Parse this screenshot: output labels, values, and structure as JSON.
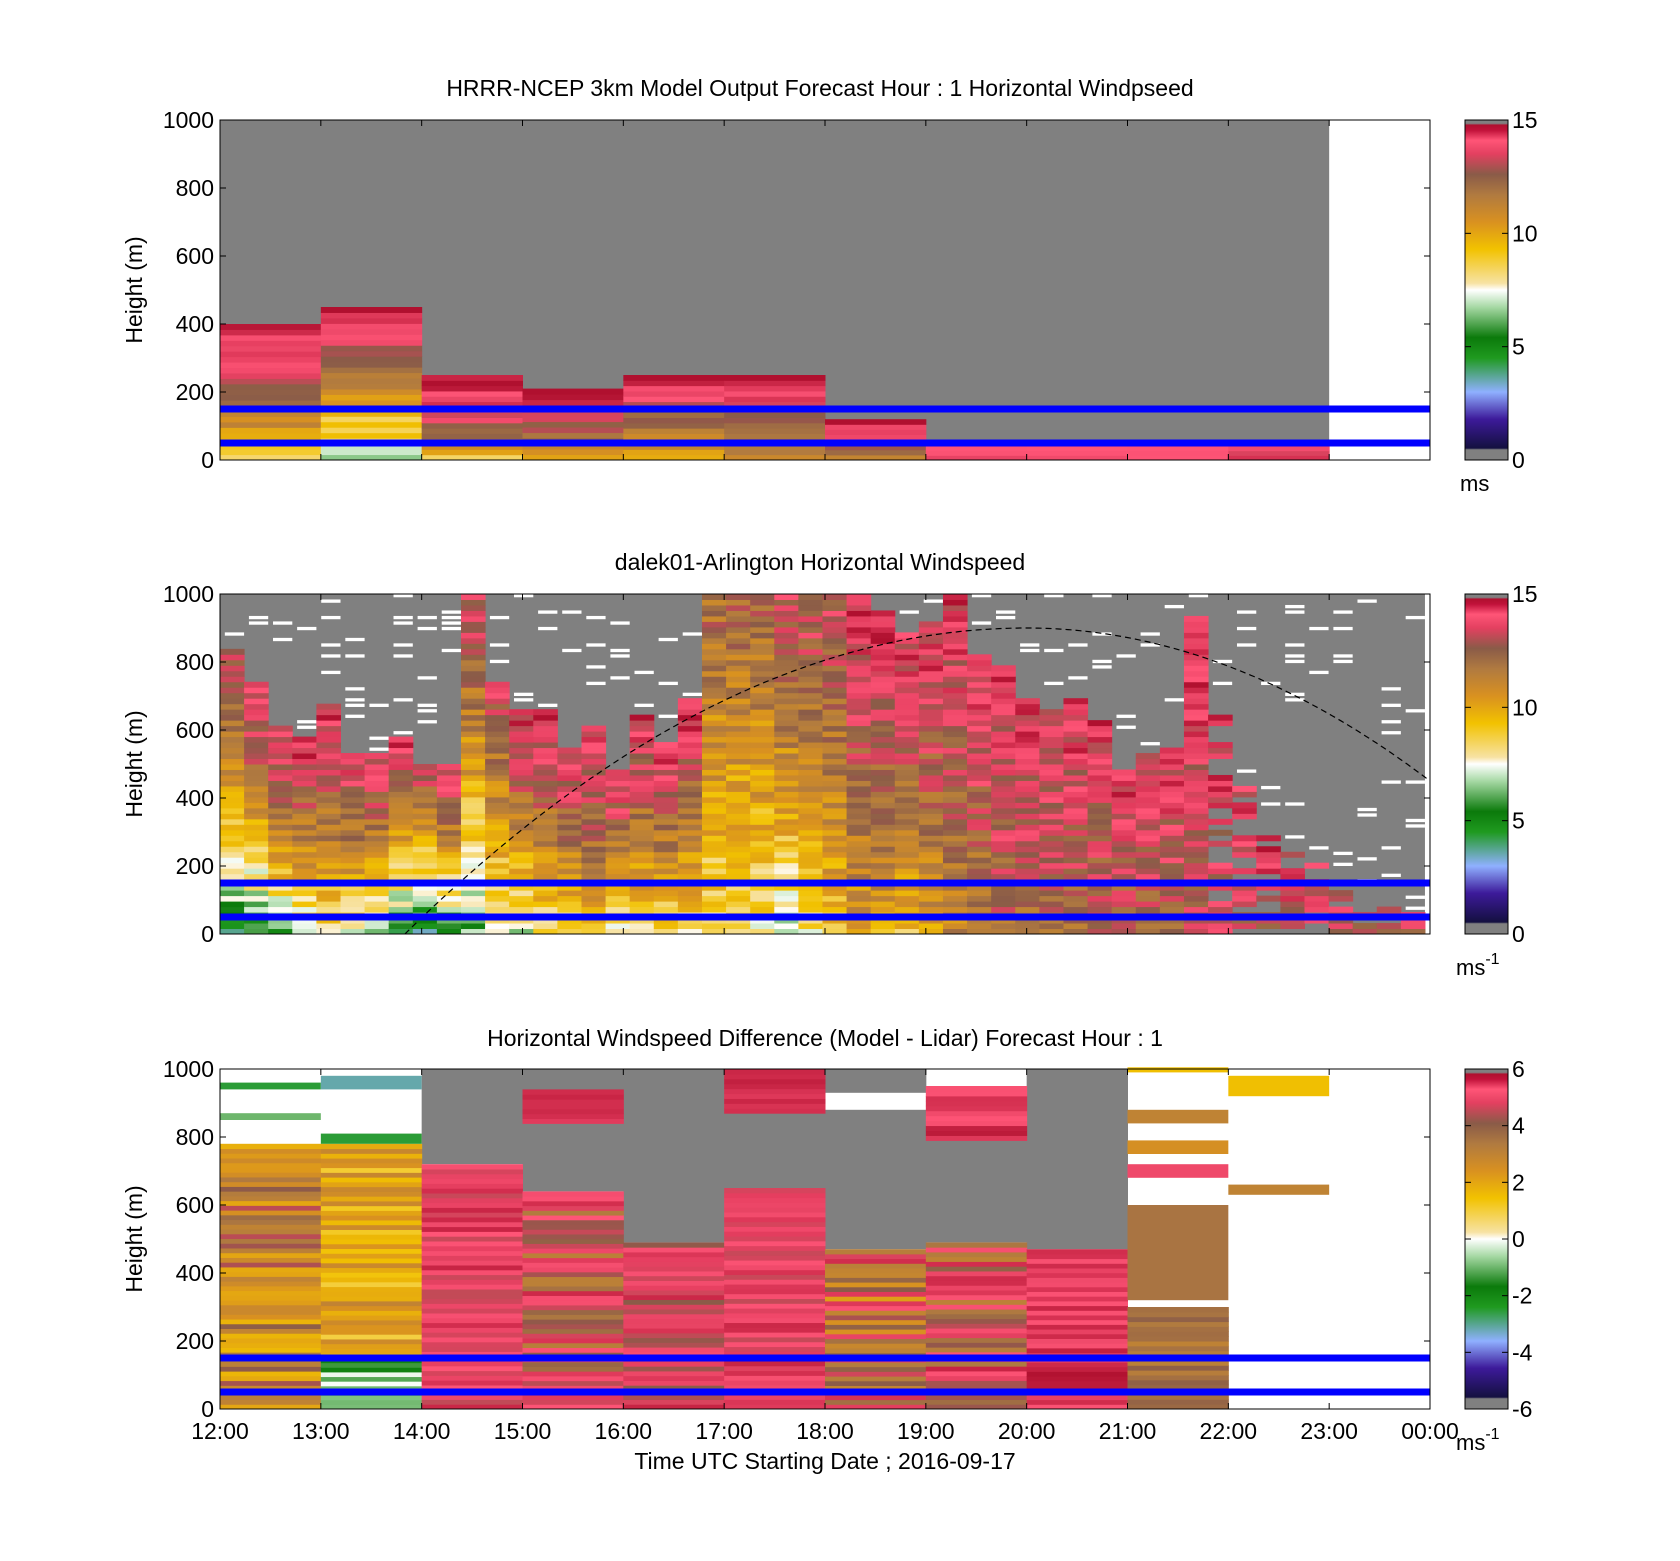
{
  "figure": {
    "xlabel": "Time UTC  Starting Date ; 2016-09-17",
    "x_ticks": [
      "12:00",
      "13:00",
      "14:00",
      "15:00",
      "16:00",
      "17:00",
      "18:00",
      "19:00",
      "20:00",
      "21:00",
      "22:00",
      "23:00",
      "00:00"
    ]
  },
  "colors": {
    "nodata": "#808080",
    "reference_lines": "#0000ff"
  },
  "chart_data": [
    {
      "type": "heatmap",
      "title": "HRRR-NCEP 3km Model Output   Forecast Hour : 1 Horizontal Windpseed",
      "ylabel": "Height (m)",
      "y_ticks": [
        "0",
        "200",
        "400",
        "600",
        "800",
        "1000"
      ],
      "xlim": [
        "12:00",
        "00:00"
      ],
      "ylim": [
        0,
        1000
      ],
      "colorbar": {
        "range": [
          0,
          15
        ],
        "ticks": [
          "0",
          "5",
          "10",
          "15"
        ],
        "units": "ms"
      },
      "reference_lines_m": [
        50,
        150
      ],
      "data_extent_end": "23:00",
      "hourly_top_m": [
        400,
        450,
        250,
        210,
        250,
        250,
        120,
        55,
        55,
        55,
        55
      ],
      "hourly_profile_ms": [
        [
          9,
          10,
          11,
          12,
          13,
          14,
          14,
          15
        ],
        [
          6,
          9,
          9,
          11,
          12,
          13,
          14,
          15
        ],
        [
          9,
          12,
          13,
          14,
          14,
          15
        ],
        [
          10,
          12,
          13,
          14,
          15
        ],
        [
          10,
          11,
          12,
          13,
          14,
          15
        ],
        [
          11,
          12,
          13,
          14,
          15
        ],
        [
          11,
          13,
          14,
          15
        ],
        [
          14
        ],
        [
          14
        ],
        [
          14
        ],
        [
          14
        ]
      ]
    },
    {
      "type": "heatmap",
      "title": "dalek01-Arlington  Horizontal Windspeed",
      "ylabel": "Height (m)",
      "y_ticks": [
        "0",
        "200",
        "400",
        "600",
        "800",
        "1000"
      ],
      "xlim": [
        "12:00",
        "00:00"
      ],
      "ylim": [
        0,
        1000
      ],
      "colorbar": {
        "range": [
          0,
          15
        ],
        "ticks": [
          "0",
          "5",
          "10",
          "15"
        ],
        "units": "ms",
        "units_exponent": "-1"
      },
      "reference_lines_m": [
        50,
        150
      ],
      "overlay_curve": {
        "style": "dashed",
        "start": [
          "13:50",
          0
        ],
        "peak": [
          "20:00",
          900
        ],
        "end": [
          "00:00",
          450
        ]
      },
      "column_top_m": [
        830,
        730,
        600,
        580,
        670,
        530,
        520,
        580,
        500,
        500,
        1000,
        740,
        660,
        650,
        540,
        600,
        470,
        640,
        560,
        680,
        1000,
        1000,
        1000,
        1000,
        1000,
        1000,
        990,
        940,
        880,
        910,
        1000,
        810,
        790,
        690,
        650,
        680,
        620,
        480,
        530,
        540,
        920,
        640,
        430,
        280,
        230,
        200,
        120,
        80,
        80,
        60
      ],
      "column_low_ms": [
        5,
        5,
        6,
        7,
        8,
        7,
        6,
        5,
        4,
        5,
        6,
        7,
        7,
        8,
        8,
        9,
        7,
        8,
        8,
        8,
        8,
        8,
        8,
        7,
        8,
        9,
        10,
        10,
        9,
        10,
        11,
        11,
        12,
        12,
        12,
        12,
        12,
        12,
        12,
        12,
        13,
        13,
        13,
        13,
        13,
        13,
        13,
        13,
        13,
        13
      ],
      "column_high_ms": [
        13,
        14,
        14,
        14,
        14,
        14,
        14,
        14,
        13,
        14,
        13,
        13,
        14,
        14,
        14,
        14,
        14,
        14,
        14,
        14,
        12,
        12,
        12,
        13,
        13,
        13,
        14,
        14,
        14,
        14,
        14,
        14,
        14,
        14,
        14,
        14,
        14,
        14,
        14,
        14,
        14,
        14,
        14,
        14,
        14,
        14,
        14,
        14,
        14,
        14
      ]
    },
    {
      "type": "heatmap",
      "title": "Horizontal Windspeed Difference (Model - Lidar) Forecast Hour : 1",
      "ylabel": "Height (m)",
      "y_ticks": [
        "0",
        "200",
        "400",
        "600",
        "800",
        "1000"
      ],
      "xlim": [
        "12:00",
        "00:00"
      ],
      "ylim": [
        0,
        1000
      ],
      "colorbar": {
        "range": [
          -6,
          6
        ],
        "ticks": [
          "-6",
          "-4",
          "-2",
          "0",
          "2",
          "4",
          "6"
        ],
        "units": "ms",
        "units_exponent": "-1"
      },
      "reference_lines_m": [
        50,
        150
      ],
      "hourly_blocks": [
        {
          "hour": "12:00",
          "from_m": 0,
          "to_m": 780,
          "low_dms": 1.5,
          "high_dms": 4.5
        },
        {
          "hour": "13:00",
          "from_m": 150,
          "to_m": 780,
          "low_dms": 1.0,
          "high_dms": 3.0
        },
        {
          "hour": "13:00",
          "from_m": 0,
          "to_m": 150,
          "low_dms": -2.0,
          "high_dms": 0.0
        },
        {
          "hour": "14:00",
          "from_m": 0,
          "to_m": 720,
          "low_dms": 4.5,
          "high_dms": 5.8
        },
        {
          "hour": "15:00",
          "from_m": 0,
          "to_m": 640,
          "low_dms": 3.0,
          "high_dms": 5.8
        },
        {
          "hour": "15:00",
          "from_m": 840,
          "to_m": 940,
          "low_dms": 5.5,
          "high_dms": 5.8
        },
        {
          "hour": "16:00",
          "from_m": 0,
          "to_m": 490,
          "low_dms": 4.0,
          "high_dms": 5.8
        },
        {
          "hour": "17:00",
          "from_m": 0,
          "to_m": 650,
          "low_dms": 4.5,
          "high_dms": 5.8
        },
        {
          "hour": "17:00",
          "from_m": 870,
          "to_m": 1000,
          "low_dms": 5.5,
          "high_dms": 5.9
        },
        {
          "hour": "18:00",
          "from_m": 0,
          "to_m": 470,
          "low_dms": 2.0,
          "high_dms": 5.8
        },
        {
          "hour": "19:00",
          "from_m": 0,
          "to_m": 490,
          "low_dms": 3.0,
          "high_dms": 5.8
        },
        {
          "hour": "19:00",
          "from_m": 790,
          "to_m": 950,
          "low_dms": 5.0,
          "high_dms": 5.9
        },
        {
          "hour": "20:00",
          "from_m": 0,
          "to_m": 470,
          "low_dms": 5.0,
          "high_dms": 6.0
        },
        {
          "hour": "21:00",
          "from_m": 0,
          "to_m": 300,
          "low_dms": 3.0,
          "high_dms": 4.0
        }
      ],
      "scattered_bands": [
        {
          "hour": "12:00",
          "from_m": 940,
          "to_m": 960,
          "value_dms": -2.5
        },
        {
          "hour": "12:00",
          "from_m": 850,
          "to_m": 870,
          "value_dms": -1.0
        },
        {
          "hour": "13:00",
          "from_m": 940,
          "to_m": 980,
          "value_dms": -3.0
        },
        {
          "hour": "13:00",
          "from_m": 780,
          "to_m": 810,
          "value_dms": -2.5
        },
        {
          "hour": "21:00",
          "from_m": 990,
          "to_m": 1005,
          "value_dms": 1.5
        },
        {
          "hour": "21:00",
          "from_m": 840,
          "to_m": 880,
          "value_dms": 3.0
        },
        {
          "hour": "21:00",
          "from_m": 750,
          "to_m": 790,
          "value_dms": 2.5
        },
        {
          "hour": "21:00",
          "from_m": 680,
          "to_m": 720,
          "value_dms": 5.0
        },
        {
          "hour": "21:00",
          "from_m": 320,
          "to_m": 600,
          "value_dms": 3.5
        },
        {
          "hour": "22:00",
          "from_m": 920,
          "to_m": 980,
          "value_dms": 1.5
        },
        {
          "hour": "22:00",
          "from_m": 630,
          "to_m": 660,
          "value_dms": 3.0
        }
      ],
      "nodata_blocks": [
        {
          "hour": "14:00",
          "from_m": 720,
          "to_m": 1000
        },
        {
          "hour": "15:00",
          "from_m": 640,
          "to_m": 1000
        },
        {
          "hour": "16:00",
          "from_m": 490,
          "to_m": 1000
        },
        {
          "hour": "17:00",
          "from_m": 650,
          "to_m": 870
        },
        {
          "hour": "18:00",
          "from_m": 470,
          "to_m": 880
        },
        {
          "hour": "18:00",
          "from_m": 930,
          "to_m": 1000
        },
        {
          "hour": "19:00",
          "from_m": 490,
          "to_m": 790
        },
        {
          "hour": "20:00",
          "from_m": 470,
          "to_m": 1000
        }
      ]
    }
  ]
}
